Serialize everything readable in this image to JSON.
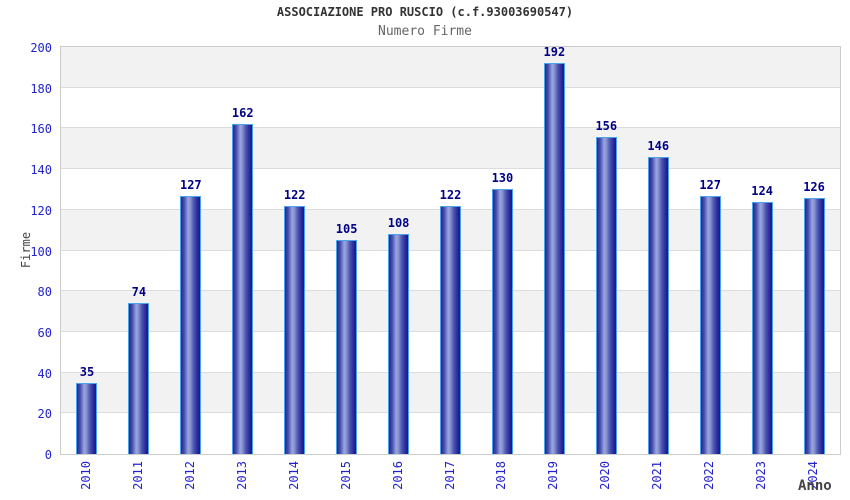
{
  "chart_data": {
    "type": "bar",
    "title": "ASSOCIAZIONE PRO RUSCIO (c.f.93003690547)",
    "subtitle": "Numero Firme",
    "xlabel": "Anno",
    "ylabel": "Firme",
    "categories": [
      "2010",
      "2011",
      "2012",
      "2013",
      "2014",
      "2015",
      "2016",
      "2017",
      "2018",
      "2019",
      "2020",
      "2021",
      "2022",
      "2023",
      "2024"
    ],
    "values": [
      35,
      74,
      127,
      162,
      122,
      105,
      108,
      122,
      130,
      192,
      156,
      146,
      127,
      124,
      126
    ],
    "ylim": [
      0,
      200
    ],
    "ytick_step": 20,
    "grid": "horizontal alternating bands",
    "legend": "none"
  },
  "colors": {
    "tick_label": "#2323cd",
    "value_label": "#000087",
    "bar_edge": "#4da3e8",
    "bar_dark": "#24249a",
    "bar_mid": "#4a54b0",
    "bar_light": "#9ba6de",
    "band_gray": "#f2f2f2",
    "grid_line": "#dcdcdc",
    "plot_border": "#cccccc",
    "title": "#333333",
    "subtitle": "#666666",
    "axis_title": "#444444"
  }
}
